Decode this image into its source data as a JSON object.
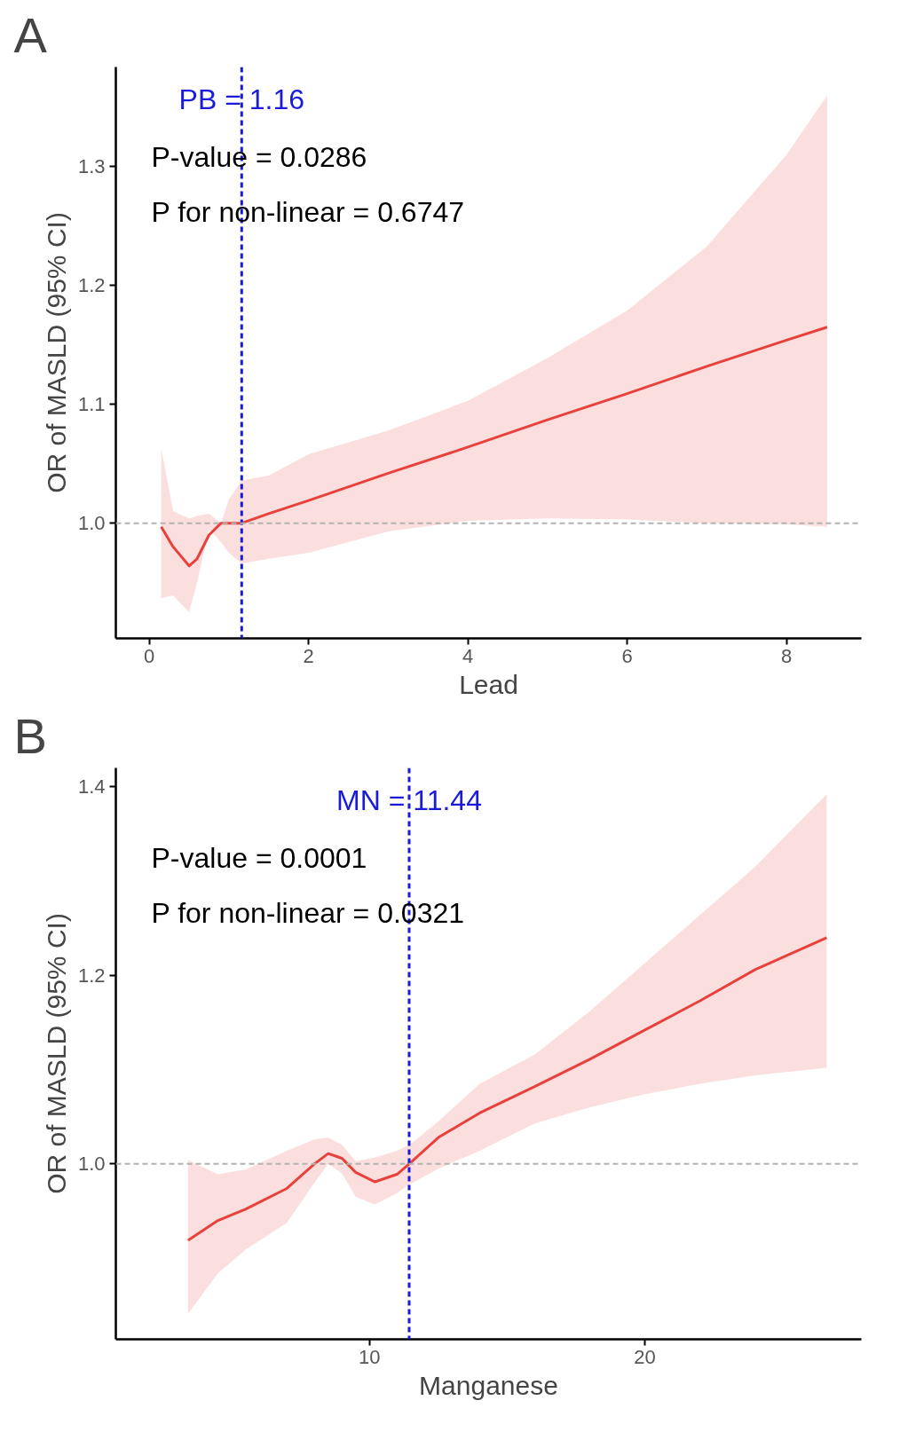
{
  "chart_data": [
    {
      "type": "line",
      "title": "A",
      "xlabel": "Lead",
      "ylabel": "OR of MASLD (95% CI)",
      "x": [
        0.15,
        0.3,
        0.5,
        0.6,
        0.75,
        0.9,
        1.0,
        1.16,
        1.5,
        2,
        3,
        4,
        5,
        6,
        7,
        8,
        8.51
      ],
      "series": [
        {
          "color": "#e8413c",
          "values": [
            0.997,
            0.98,
            0.964,
            0.97,
            0.99,
            1.0,
            1.0,
            1.0,
            1.008,
            1.019,
            1.042,
            1.064,
            1.087,
            1.109,
            1.132,
            1.154,
            1.165
          ],
          "upper": [
            1.063,
            1.01,
            1.004,
            1.006,
            1.008,
            1.0,
            1.02,
            1.036,
            1.04,
            1.058,
            1.078,
            1.103,
            1.139,
            1.179,
            1.233,
            1.31,
            1.36
          ],
          "lower": [
            0.937,
            0.939,
            0.925,
            0.95,
            0.995,
            0.984,
            0.975,
            0.966,
            0.97,
            0.975,
            0.993,
            1.002,
            1.004,
            1.003,
            1.0,
            0.999,
            0.997
          ]
        }
      ],
      "xlim": [
        -0.42,
        8.94
      ],
      "ylim": [
        0.903,
        1.384
      ],
      "xticks": [
        0,
        2,
        4,
        6,
        8
      ],
      "yticks": [
        {
          "value": 1.0,
          "label": "1.0"
        },
        1.1,
        1.2,
        1.3
      ],
      "ref_lines": [
        {
          "axis": "x",
          "value": 1.16,
          "label": "PB = 1.16",
          "color": "#1a1adb",
          "line_style": "dashed"
        },
        {
          "axis": "y",
          "value": 1.0,
          "color": "#b3b3b3",
          "line_style": "dashed"
        }
      ],
      "annotations": [
        "P-value = 0.0286",
        "P for non-linear = 0.6747"
      ],
      "grid": false,
      "marker": "none",
      "line_style": "solid"
    },
    {
      "type": "line",
      "title": "B",
      "xlabel": "Manganese",
      "ylabel": "OR of MASLD (95% CI)",
      "x": [
        3.41,
        4.5,
        5.5,
        7,
        8,
        8.5,
        9,
        9.5,
        10.2,
        11,
        11.44,
        12.5,
        14,
        16,
        18,
        20,
        22,
        24,
        26.6
      ],
      "series": [
        {
          "color": "#e8413c",
          "values": [
            0.919,
            0.94,
            0.952,
            0.974,
            1.0,
            1.011,
            1.006,
            0.991,
            0.981,
            0.989,
            1.0,
            1.028,
            1.054,
            1.082,
            1.111,
            1.142,
            1.173,
            1.206,
            1.24
          ],
          "upper": [
            1.004,
            0.989,
            0.994,
            1.014,
            1.026,
            1.028,
            1.02,
            1.003,
            1.007,
            1.014,
            1.02,
            1.045,
            1.085,
            1.116,
            1.162,
            1.213,
            1.264,
            1.315,
            1.392
          ],
          "lower": [
            0.841,
            0.884,
            0.909,
            0.9375,
            0.98,
            1.0,
            0.99,
            0.965,
            0.957,
            0.969,
            0.978,
            0.995,
            1.014,
            1.043,
            1.06,
            1.074,
            1.085,
            1.094,
            1.102
          ]
        }
      ],
      "xlim": [
        0.79,
        27.86
      ],
      "ylim": [
        0.814,
        1.42
      ],
      "xticks": [
        10,
        20
      ],
      "yticks": [
        {
          "value": 1.0,
          "label": "1.0"
        },
        1.2,
        1.4
      ],
      "ref_lines": [
        {
          "axis": "x",
          "value": 11.44,
          "label": "MN = 11.44",
          "color": "#1a1adb",
          "line_style": "dashed"
        },
        {
          "axis": "y",
          "value": 1.0,
          "color": "#b3b3b3",
          "line_style": "dashed"
        }
      ],
      "annotations": [
        "P-value = 0.0001",
        "P for non-linear = 0.0321"
      ],
      "grid": false,
      "marker": "none",
      "line_style": "solid"
    }
  ]
}
